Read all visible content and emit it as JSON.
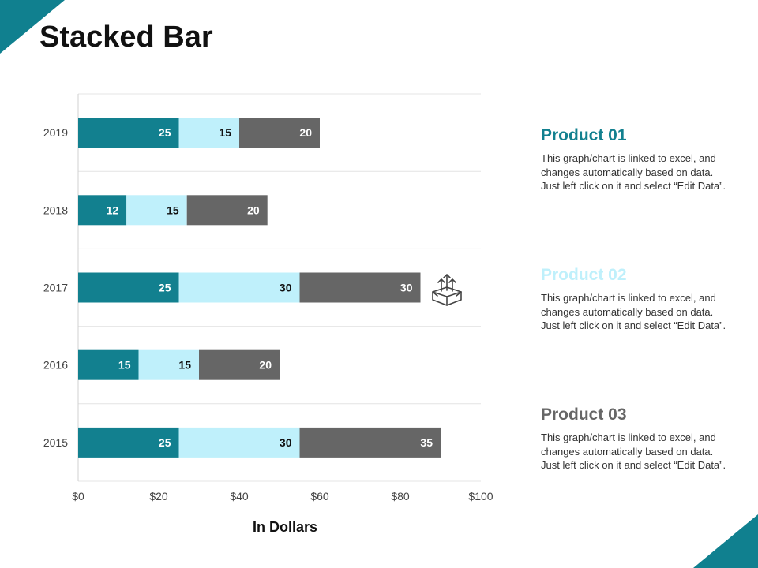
{
  "page": {
    "title": "Stacked Bar"
  },
  "colors": {
    "accent": "#10808f",
    "product1": "#12808f",
    "product2": "#bff0fb",
    "product3": "#666666"
  },
  "chart_data": {
    "type": "bar",
    "orientation": "horizontal",
    "stacked": true,
    "categories": [
      "2019",
      "2018",
      "2017",
      "2016",
      "2015"
    ],
    "series": [
      {
        "name": "Product 01",
        "values": [
          25,
          12,
          25,
          15,
          25
        ]
      },
      {
        "name": "Product 02",
        "values": [
          15,
          15,
          30,
          15,
          30
        ]
      },
      {
        "name": "Product 03",
        "values": [
          20,
          20,
          30,
          20,
          35
        ]
      }
    ],
    "xlabel": "In Dollars",
    "xlim": [
      0,
      100
    ],
    "xticks": [
      0,
      20,
      40,
      60,
      80,
      100
    ],
    "xtick_labels": [
      "$0",
      "$20",
      "$40",
      "$60",
      "$80",
      "$100"
    ],
    "grid": true,
    "data_labels": true
  },
  "legend": [
    {
      "title": "Product 01",
      "color": "#12808f",
      "text": "This graph/chart is linked to excel, and changes automatically based on data. Just left click on it and select “Edit Data”."
    },
    {
      "title": "Product 02",
      "color": "#bff0fb",
      "text": "This graph/chart is linked to excel, and changes automatically based on data. Just left click on it and select “Edit Data”."
    },
    {
      "title": "Product 03",
      "color": "#666666",
      "text": "This graph/chart is linked to excel, and changes automatically based on data. Just left click on it and select “Edit Data”."
    }
  ],
  "icons": {
    "decorative": "box-growth-arrows-icon"
  }
}
